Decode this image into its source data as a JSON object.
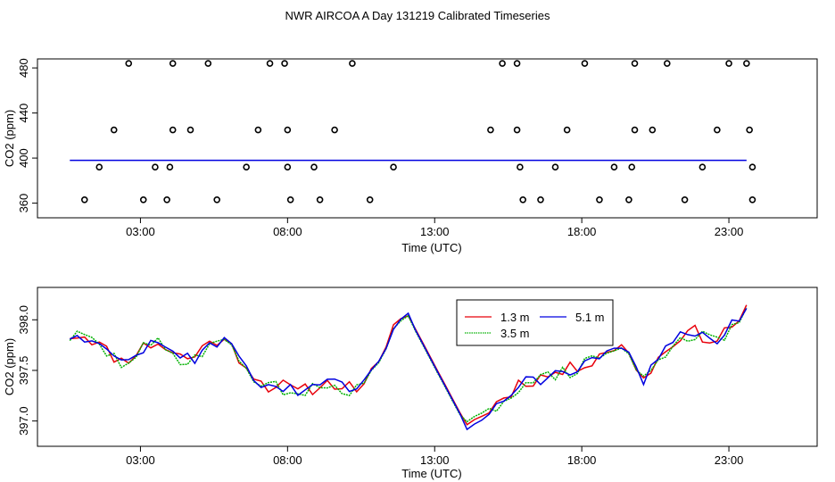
{
  "title": "NWR AIRCOA A  Day 131219  Calibrated Timeseries",
  "colors": {
    "red": "#e8000b",
    "green": "#00b000",
    "blue": "#0000e0",
    "axis": "#000000"
  },
  "chart_data": [
    {
      "type": "scatter",
      "xlabel": "Time (UTC)",
      "ylabel": "CO2 (ppm)",
      "xlim": [
        -0.5,
        26
      ],
      "ylim": [
        347,
        488
      ],
      "xticks": [
        3,
        8,
        13,
        18,
        23
      ],
      "xtick_labels": [
        "03:00",
        "08:00",
        "13:00",
        "18:00",
        "23:00"
      ],
      "yticks": [
        360,
        400,
        440,
        480
      ],
      "ytick_labels": [
        "360",
        "400",
        "440",
        "480"
      ],
      "reference_line": {
        "name": "5.1 m",
        "y": 398
      },
      "points": [
        [
          1.1,
          363
        ],
        [
          1.6,
          392
        ],
        [
          2.1,
          425
        ],
        [
          2.6,
          484
        ],
        [
          3.1,
          363
        ],
        [
          3.5,
          392
        ],
        [
          3.9,
          363
        ],
        [
          4.0,
          392
        ],
        [
          4.1,
          425
        ],
        [
          4.1,
          484
        ],
        [
          4.7,
          425
        ],
        [
          5.3,
          484
        ],
        [
          5.6,
          363
        ],
        [
          6.6,
          392
        ],
        [
          7.0,
          425
        ],
        [
          7.4,
          484
        ],
        [
          7.9,
          484
        ],
        [
          8.0,
          425
        ],
        [
          8.0,
          392
        ],
        [
          8.1,
          363
        ],
        [
          8.9,
          392
        ],
        [
          9.1,
          363
        ],
        [
          9.6,
          425
        ],
        [
          10.2,
          484
        ],
        [
          10.8,
          363
        ],
        [
          11.6,
          392
        ],
        [
          14.9,
          425
        ],
        [
          15.3,
          484
        ],
        [
          15.8,
          484
        ],
        [
          15.8,
          425
        ],
        [
          15.9,
          392
        ],
        [
          16.0,
          363
        ],
        [
          16.6,
          363
        ],
        [
          17.1,
          392
        ],
        [
          17.5,
          425
        ],
        [
          18.1,
          484
        ],
        [
          18.6,
          363
        ],
        [
          19.1,
          392
        ],
        [
          19.6,
          363
        ],
        [
          19.7,
          392
        ],
        [
          19.8,
          425
        ],
        [
          19.8,
          484
        ],
        [
          20.4,
          425
        ],
        [
          20.9,
          484
        ],
        [
          21.5,
          363
        ],
        [
          22.1,
          392
        ],
        [
          22.6,
          425
        ],
        [
          23.0,
          484
        ],
        [
          23.6,
          484
        ],
        [
          23.7,
          425
        ],
        [
          23.8,
          392
        ],
        [
          23.8,
          363
        ]
      ]
    },
    {
      "type": "line",
      "xlabel": "Time (UTC)",
      "ylabel": "CO2 (ppm)",
      "xlim": [
        -0.5,
        26
      ],
      "ylim": [
        396.75,
        398.32
      ],
      "xticks": [
        3,
        8,
        13,
        18,
        23
      ],
      "xtick_labels": [
        "03:00",
        "08:00",
        "13:00",
        "18:00",
        "23:00"
      ],
      "yticks": [
        397.0,
        397.5,
        398.0
      ],
      "ytick_labels": [
        "397.0",
        "397.5",
        "398.0"
      ],
      "legend": {
        "placement": "top-right",
        "entries": [
          "1.3 m",
          "3.5 m",
          "5.1 m"
        ]
      },
      "anchors": [
        [
          0.6,
          397.85
        ],
        [
          1.2,
          397.85
        ],
        [
          1.8,
          397.7
        ],
        [
          2.4,
          397.58
        ],
        [
          3.0,
          397.72
        ],
        [
          3.6,
          397.78
        ],
        [
          4.2,
          397.65
        ],
        [
          4.8,
          397.62
        ],
        [
          5.4,
          397.82
        ],
        [
          6.0,
          397.76
        ],
        [
          6.6,
          397.55
        ],
        [
          7.2,
          397.35
        ],
        [
          7.8,
          397.35
        ],
        [
          8.4,
          397.28
        ],
        [
          9.0,
          397.34
        ],
        [
          9.6,
          397.38
        ],
        [
          10.3,
          397.32
        ],
        [
          10.8,
          397.45
        ],
        [
          11.3,
          397.62
        ],
        [
          11.7,
          398.02
        ],
        [
          12.0,
          398.1
        ],
        [
          13.0,
          397.55
        ],
        [
          14.1,
          396.95
        ],
        [
          14.7,
          397.08
        ],
        [
          15.3,
          397.22
        ],
        [
          15.9,
          397.38
        ],
        [
          16.5,
          397.42
        ],
        [
          17.1,
          397.47
        ],
        [
          17.7,
          397.52
        ],
        [
          18.3,
          397.6
        ],
        [
          18.9,
          397.72
        ],
        [
          19.5,
          397.72
        ],
        [
          20.1,
          397.42
        ],
        [
          20.7,
          397.65
        ],
        [
          21.3,
          397.85
        ],
        [
          21.9,
          397.88
        ],
        [
          22.5,
          397.78
        ],
        [
          23.1,
          397.95
        ],
        [
          23.6,
          398.08
        ]
      ],
      "series": [
        {
          "name": "1.3 m",
          "color": "#e8000b",
          "seed": 11,
          "amplitude": 0.07,
          "offset": 0.0,
          "step_hours": 0.25
        },
        {
          "name": "3.5 m",
          "color": "#00b000",
          "seed": 29,
          "amplitude": 0.07,
          "offset": -0.02,
          "step_hours": 0.25
        },
        {
          "name": "5.1 m",
          "color": "#0000e0",
          "seed": 47,
          "amplitude": 0.06,
          "offset": -0.01,
          "step_hours": 0.25
        }
      ]
    }
  ]
}
